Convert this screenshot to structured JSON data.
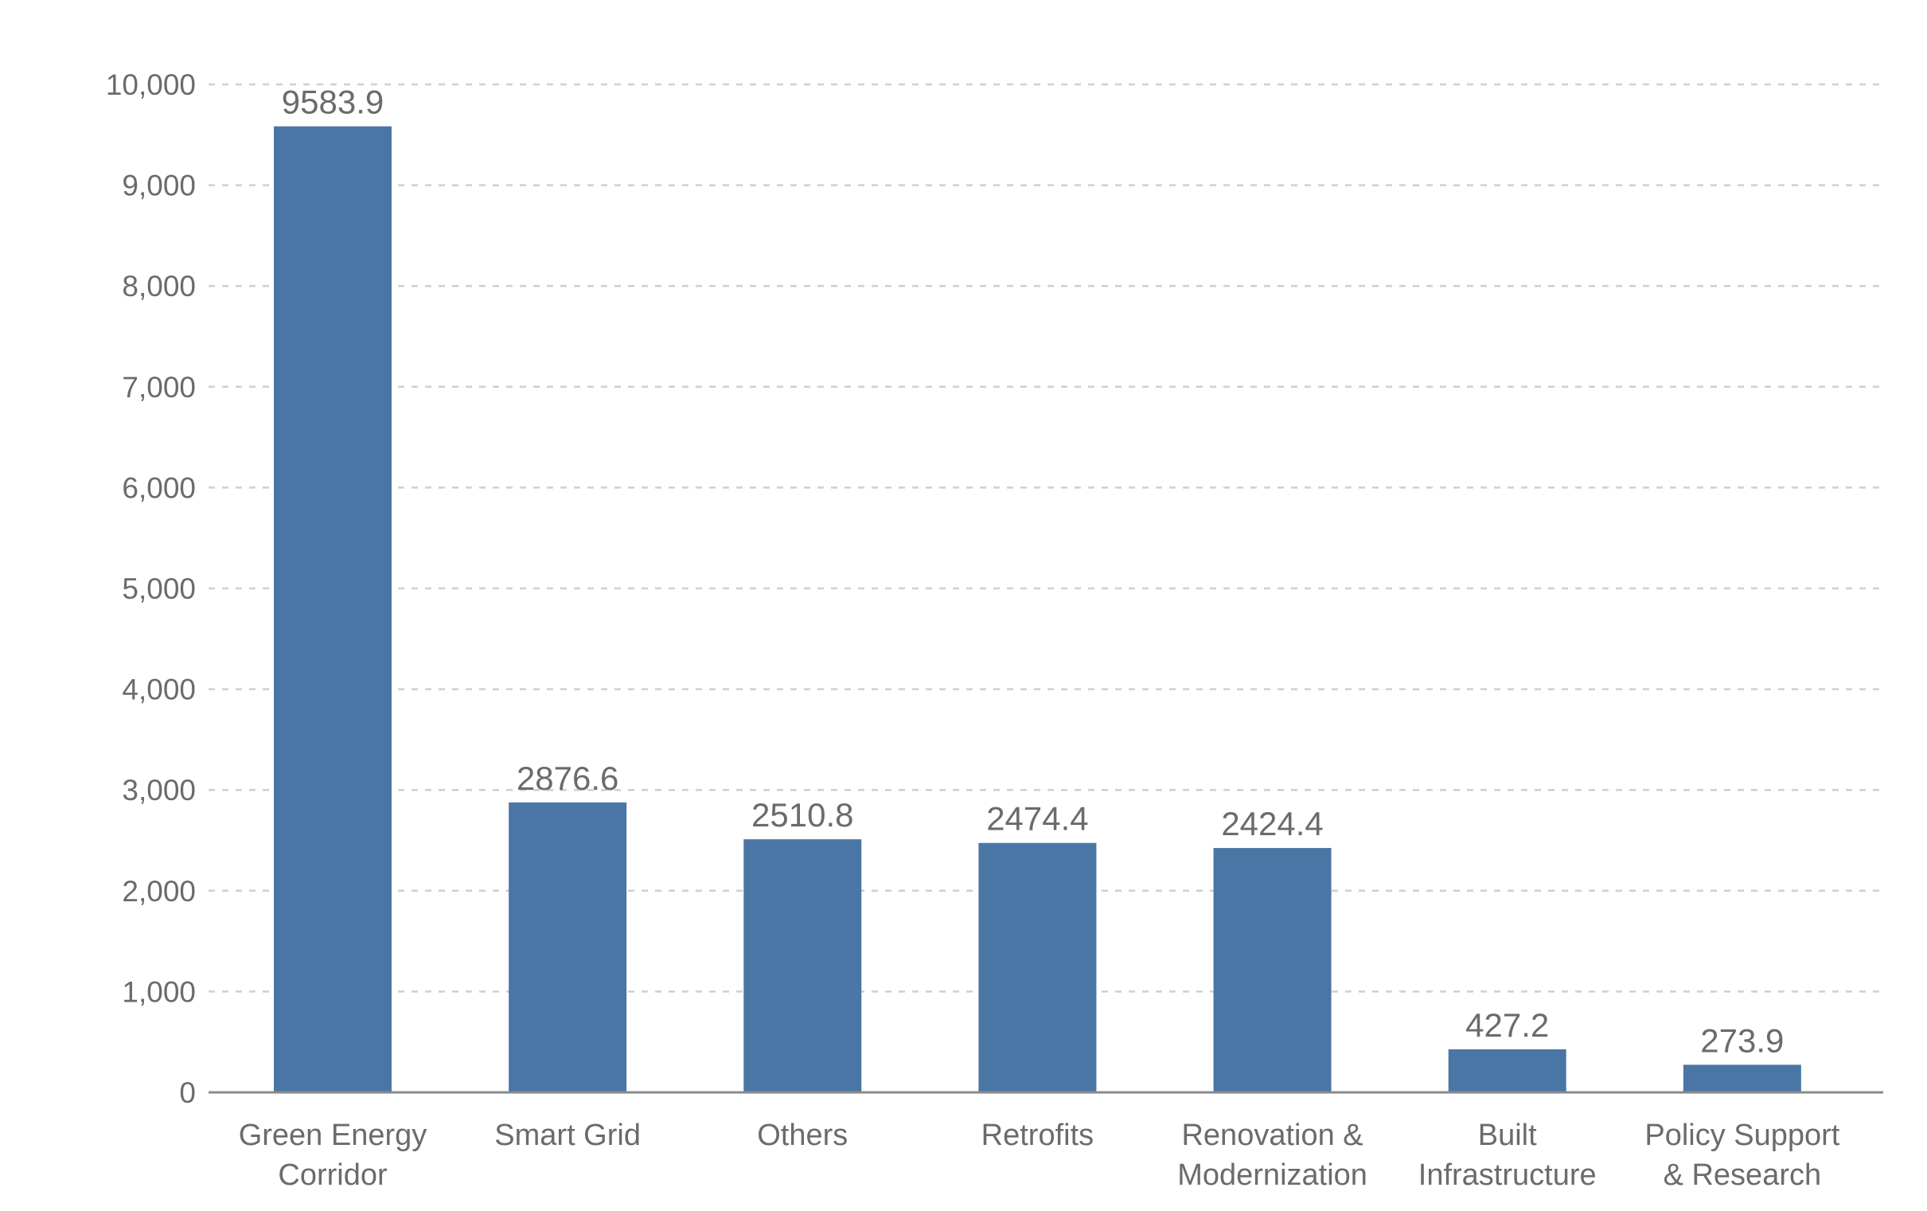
{
  "chart_data": {
    "type": "bar",
    "categories": [
      [
        "Green Energy",
        "Corridor"
      ],
      [
        "Smart Grid"
      ],
      [
        "Others"
      ],
      [
        "Retrofits"
      ],
      [
        "Renovation &",
        "Modernization"
      ],
      [
        "Built",
        "Infrastructure"
      ],
      [
        "Policy Support",
        "& Research"
      ]
    ],
    "values": [
      9583.9,
      2876.6,
      2510.8,
      2474.4,
      2424.4,
      427.2,
      273.9
    ],
    "value_labels": [
      "9583.9",
      "2876.6",
      "2510.8",
      "2474.4",
      "2424.4",
      "427.2",
      "273.9"
    ],
    "y_ticks": [
      0,
      1000,
      2000,
      3000,
      4000,
      5000,
      6000,
      7000,
      8000,
      9000,
      10000
    ],
    "y_tick_labels": [
      "0",
      "1,000",
      "2,000",
      "3,000",
      "4,000",
      "5,000",
      "6,000",
      "7,000",
      "8,000",
      "9,000",
      "10,000"
    ],
    "ylim": [
      0,
      10000
    ],
    "grid": true,
    "legend": "none",
    "bar_color": "#4a76a6",
    "text_color": "#6b6b6b"
  }
}
